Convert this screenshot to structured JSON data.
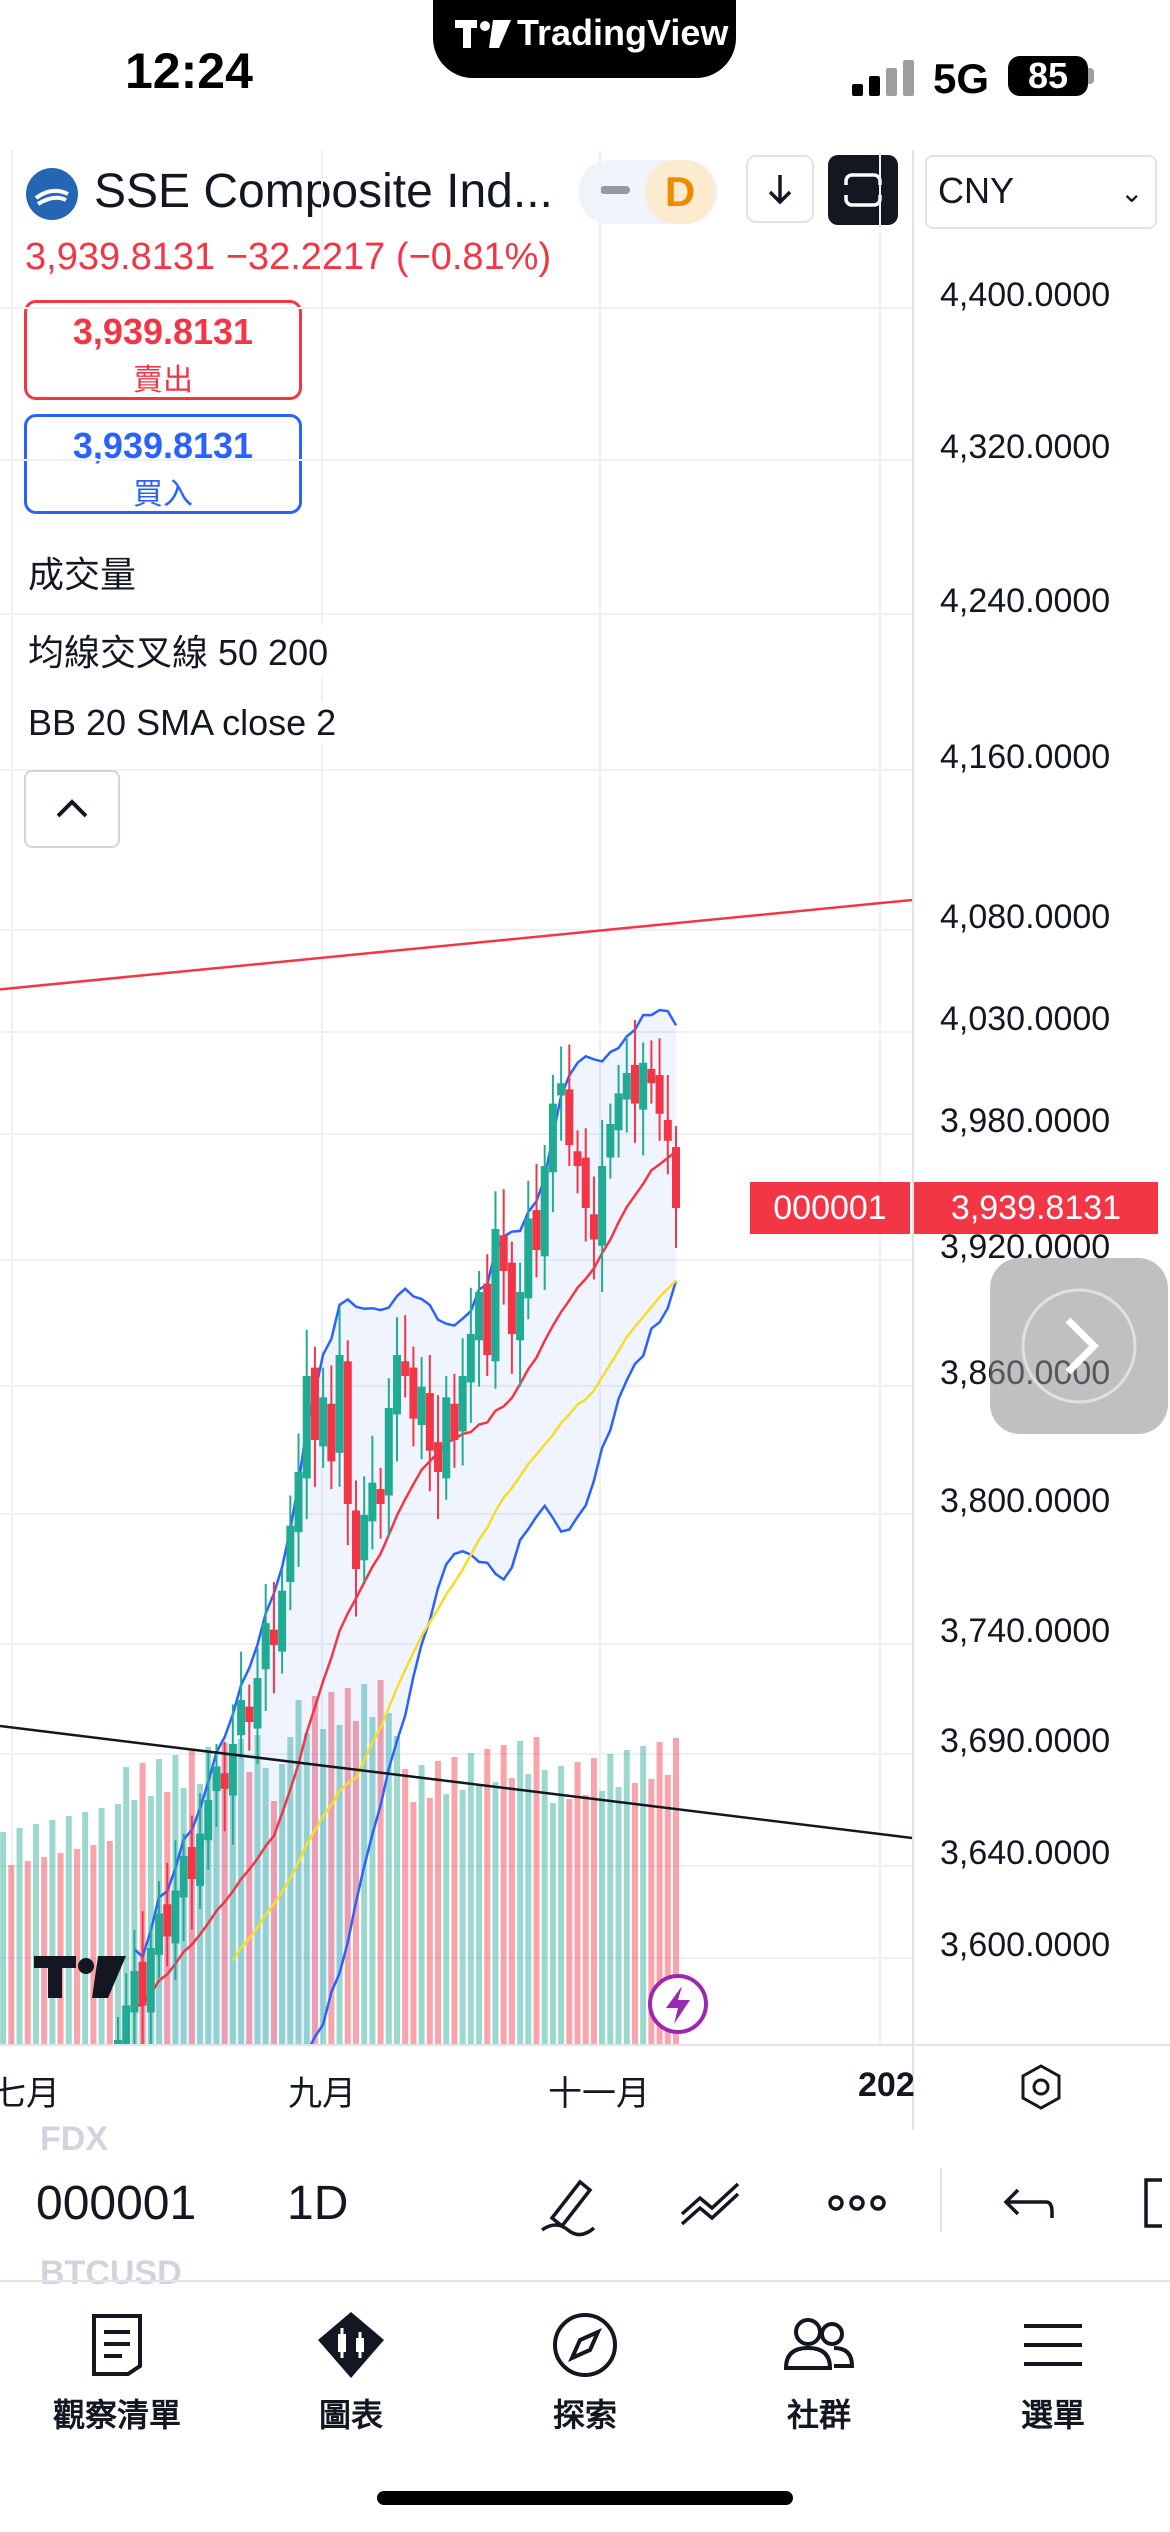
{
  "status_bar": {
    "time": "12:24",
    "network": "5G",
    "battery": "85",
    "center_brand": "TradingView"
  },
  "header": {
    "symbol_name": "SSE Composite Ind...",
    "interval": "D",
    "currency": "CNY"
  },
  "quote": {
    "price_change_line": "3,939.8131 −32.2217 (−0.81%)",
    "sell_price": "3,939.8131",
    "sell_label": "賣出",
    "buy_price": "3,939.8131",
    "buy_label": "買入"
  },
  "indicators": [
    "成交量",
    "均線交叉線 50 200",
    "BB 20 SMA close 2"
  ],
  "price_axis": {
    "labels": [
      "4,400.0000",
      "4,320.0000",
      "4,240.0000",
      "4,160.0000",
      "4,080.0000",
      "4,030.0000",
      "3,980.0000",
      "3,920.0000",
      "3,860.0000",
      "3,800.0000",
      "3,740.0000",
      "3,690.0000",
      "3,640.0000",
      "3,600.0000"
    ],
    "last_symbol": "000001",
    "last_price": "3,939.8131"
  },
  "time_axis": {
    "labels": [
      "七月",
      "九月",
      "十一月",
      "202"
    ]
  },
  "bottom_toolbar": {
    "ghost_symbol_top": "FDX",
    "symbol": "000001",
    "interval": "1D",
    "ghost_symbol_bottom": "BTCUSD"
  },
  "tabs": [
    {
      "label": "觀察清單",
      "icon": "watchlist-icon"
    },
    {
      "label": "圖表",
      "icon": "chart-icon"
    },
    {
      "label": "探索",
      "icon": "compass-icon"
    },
    {
      "label": "社群",
      "icon": "community-icon"
    },
    {
      "label": "選單",
      "icon": "menu-icon"
    }
  ],
  "colors": {
    "up": "#22ab94",
    "down": "#f23645",
    "bb_band": "#2962ff",
    "bb_basis": "#f23645",
    "ma_slow": "#f5dd28",
    "accent_blue": "#2962ff"
  },
  "chart_data": {
    "type": "candlestick",
    "symbol": "000001",
    "interval": "1D",
    "currency": "CNY",
    "last_price": 3939.8131,
    "change": -32.2217,
    "change_percent": -0.81,
    "y_axis_ticks": [
      4400,
      4320,
      4240,
      4160,
      4080,
      4030,
      3980,
      3920,
      3860,
      3800,
      3740,
      3690,
      3640,
      3600
    ],
    "x_axis_ticks": [
      "七月",
      "九月",
      "十一月",
      "202"
    ],
    "close": [
      3560,
      3575,
      3590,
      3575,
      3600,
      3615,
      3605,
      3625,
      3640,
      3630,
      3650,
      3665,
      3680,
      3670,
      3690,
      3710,
      3700,
      3720,
      3745,
      3735,
      3760,
      3790,
      3815,
      3860,
      3830,
      3850,
      3820,
      3870,
      3800,
      3770,
      3795,
      3810,
      3800,
      3845,
      3870,
      3860,
      3840,
      3855,
      3825,
      3815,
      3850,
      3830,
      3860,
      3880,
      3900,
      3870,
      3930,
      3910,
      3880,
      3900,
      3935,
      3920,
      3960,
      3990,
      4000,
      3970,
      3960,
      3940,
      3925,
      3960,
      3980,
      3995,
      4005,
      3990,
      4010,
      4000,
      3985,
      3972,
      3940
    ],
    "bollinger": {
      "period": 20,
      "source": "close",
      "stddev": 2
    },
    "moving_average_cross": [
      50,
      200
    ],
    "volume": true,
    "trendlines": [
      {
        "color": "red",
        "direction": "rising"
      },
      {
        "color": "black",
        "direction": "falling"
      }
    ]
  }
}
